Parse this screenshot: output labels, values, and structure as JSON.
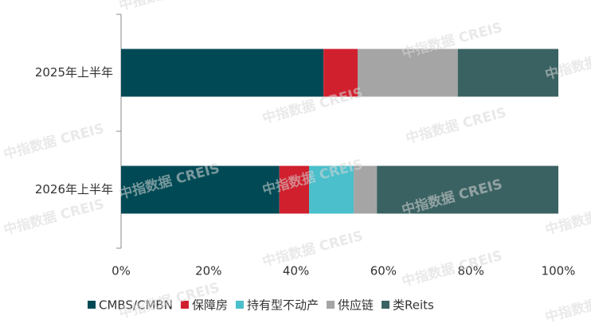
{
  "chart_data": {
    "type": "stacked-barh",
    "categories": [
      "2025年上半年",
      "2026年上半年"
    ],
    "series": [
      {
        "name": "CMBS/CMBN",
        "color": "#014a55",
        "values": [
          46.3,
          36.2
        ]
      },
      {
        "name": "保障房",
        "color": "#d0202e",
        "values": [
          7.8,
          6.8
        ]
      },
      {
        "name": "持有型不动产",
        "color": "#4bbfcb",
        "values": [
          0,
          10.2
        ]
      },
      {
        "name": "供应链",
        "color": "#a5a5a5",
        "values": [
          22.9,
          5.3
        ]
      },
      {
        "name": "类Reits",
        "color": "#3b6262",
        "values": [
          23.0,
          41.5
        ]
      }
    ],
    "xlim": [
      0,
      100
    ],
    "xticks": [
      {
        "value": 0,
        "label": "0%"
      },
      {
        "value": 20,
        "label": "20%"
      },
      {
        "value": 40,
        "label": "40%"
      },
      {
        "value": 60,
        "label": "60%"
      },
      {
        "value": 80,
        "label": "80%"
      },
      {
        "value": 100,
        "label": "100%"
      }
    ],
    "legend": "bottom",
    "watermark": "中指数据 CREIS"
  }
}
